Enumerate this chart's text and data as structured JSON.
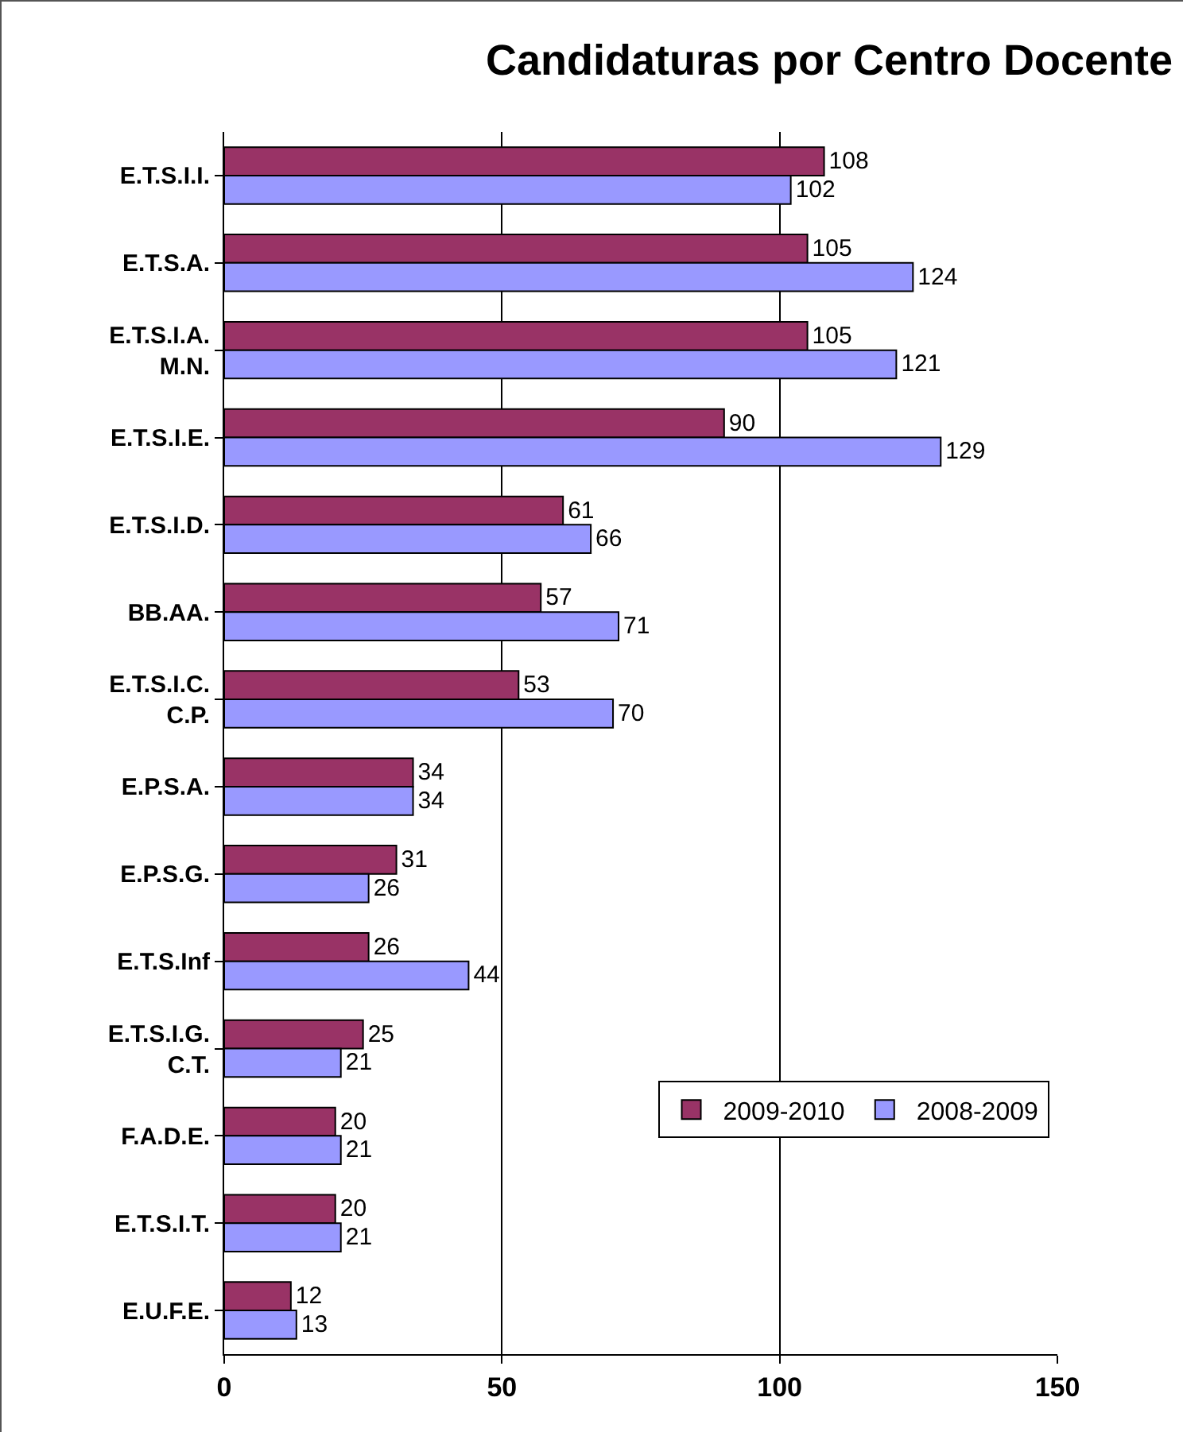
{
  "chart_data": {
    "type": "bar",
    "orientation": "horizontal",
    "title": "Candidaturas por Centro Docente",
    "categories": [
      "E.T.S.I.I.",
      "E.T.S.A.",
      "E.T.S.I.A.\nM.N.",
      "E.T.S.I.E.",
      "E.T.S.I.D.",
      "BB.AA.",
      "E.T.S.I.C.\nC.P.",
      "E.P.S.A.",
      "E.P.S.G.",
      "E.T.S.Inf",
      "E.T.S.I.G.\nC.T.",
      "F.A.D.E.",
      "E.T.S.I.T.",
      "E.U.F.E."
    ],
    "series": [
      {
        "name": "2009-2010",
        "color": "#993366",
        "values": [
          108,
          105,
          105,
          90,
          61,
          57,
          53,
          34,
          31,
          26,
          25,
          20,
          20,
          12
        ]
      },
      {
        "name": "2008-2009",
        "color": "#9999ff",
        "values": [
          102,
          124,
          121,
          129,
          66,
          71,
          70,
          34,
          26,
          44,
          21,
          21,
          21,
          13
        ]
      }
    ],
    "xlim": [
      0,
      150
    ],
    "xticks": [
      0,
      50,
      100,
      150
    ],
    "grid": "x",
    "legend": "bottom right",
    "data_labels": true
  }
}
